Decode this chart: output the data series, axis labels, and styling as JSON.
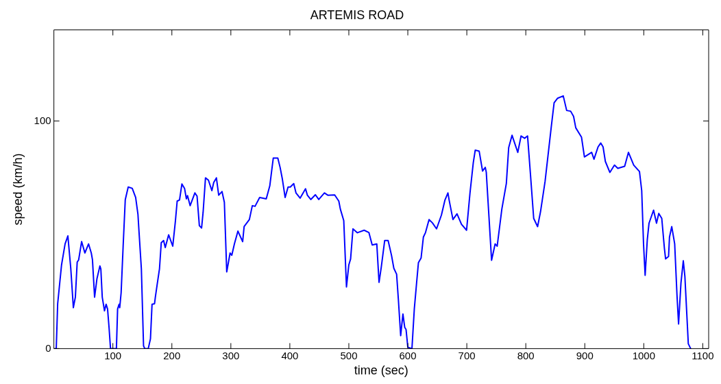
{
  "chart_data": {
    "type": "line",
    "title": "ARTEMIS ROAD",
    "xlabel": "time (sec)",
    "ylabel": "speed (km/h)",
    "xlim": [
      0,
      1110
    ],
    "xticks": [
      100,
      200,
      300,
      400,
      500,
      600,
      700,
      800,
      900,
      1000,
      1100
    ],
    "ylim": [
      0,
      140
    ],
    "yticks": [
      0,
      100
    ],
    "grid": false,
    "legend": false,
    "marker": "none",
    "line_style": "solid",
    "series": [
      {
        "color": "#0000ff",
        "x": [
          2,
          4,
          6.4,
          13,
          19,
          23.7,
          28.7,
          33,
          36.4,
          39.5,
          42,
          47,
          52.6,
          58.8,
          63.4,
          65.4,
          69,
          73,
          78,
          79.6,
          82,
          85.8,
          88.5,
          91,
          93.5,
          96,
          106,
          108,
          110.6,
          111.6,
          114,
          117.4,
          121,
          126,
          132.8,
          138.6,
          142.5,
          144.4,
          148.3,
          152,
          154,
          160,
          163.7,
          166.4,
          170.6,
          172,
          175,
          179,
          182,
          186,
          188.8,
          194.5,
          201.5,
          206,
          209,
          213,
          217,
          221.5,
          224.6,
          226.5,
          231,
          239,
          242.7,
          246.6,
          250.4,
          253,
          257,
          262,
          267.8,
          271,
          275.5,
          279.4,
          285,
          289,
          293,
          298.7,
          301.6,
          306,
          312,
          320,
          322.5,
          331.4,
          336.4,
          341,
          348.8,
          360,
          366,
          371.9,
          379.6,
          383.5,
          387.3,
          392,
          397,
          400.8,
          406.6,
          410.4,
          417.4,
          426.6,
          429.7,
          435.5,
          443.3,
          449,
          458.6,
          464.4,
          476,
          483,
          485.6,
          491.4,
          496,
          500,
          503,
          507,
          514.5,
          526,
          534,
          539.6,
          547.4,
          551.2,
          555,
          560.8,
          566.6,
          572.4,
          576.3,
          581,
          584,
          587.9,
          591.7,
          594.8,
          597,
          600,
          607,
          611,
          614.8,
          618,
          622.5,
          626.4,
          630,
          636,
          641.8,
          648.7,
          657,
          663,
          668,
          670,
          676.5,
          683.4,
          691,
          699.6,
          705.4,
          711,
          714.3,
          721,
          726.7,
          731.3,
          733,
          742,
          748,
          751.5,
          759.4,
          767,
          771,
          776.7,
          786.4,
          792,
          798,
          803,
          807.6,
          813.4,
          820,
          825,
          832.7,
          843,
          848,
          854,
          863.5,
          869.3,
          876,
          881,
          884.7,
          894.4,
          899.4,
          911.7,
          915.6,
          922.5,
          927,
          931,
          934.9,
          942.5,
          950.3,
          956,
          967.6,
          974,
          983,
          992.7,
          996.5,
          999.6,
          1002.3,
          1006,
          1008.9,
          1016.6,
          1021.6,
          1025.4,
          1030.5,
          1035,
          1037,
          1042,
          1043.6,
          1047.4,
          1052.4,
          1056.3,
          1059,
          1063,
          1067,
          1069.7,
          1075.5,
          1079.5
        ],
        "values": [
          0,
          0,
          19.7,
          36.8,
          46,
          49.5,
          35,
          18,
          22.6,
          38,
          39,
          47,
          42,
          46,
          42,
          39,
          22.6,
          30.7,
          36.3,
          35,
          22.6,
          16.6,
          19.5,
          17.4,
          9.3,
          0,
          0,
          17.4,
          19.5,
          18,
          24.6,
          45,
          65.4,
          71,
          70.4,
          66.4,
          59,
          51,
          35,
          1.2,
          0,
          0,
          4.3,
          19.5,
          19.7,
          22.6,
          28,
          35,
          46.5,
          47.5,
          44.4,
          50,
          45,
          56,
          64.8,
          65.3,
          72.3,
          70.4,
          65.8,
          67.2,
          62.8,
          68.4,
          67,
          54,
          53,
          60,
          75,
          74,
          69.4,
          73,
          75,
          67.4,
          69,
          64.3,
          33.7,
          42,
          41,
          46,
          51.6,
          47,
          53.6,
          56.7,
          62.8,
          62.5,
          66.4,
          65.8,
          71.5,
          83.7,
          83.7,
          79.6,
          74.5,
          66.4,
          71,
          71,
          72.5,
          68.4,
          66.1,
          70.2,
          67.4,
          65.5,
          67.6,
          65.5,
          68.4,
          67.4,
          67.5,
          64.8,
          61.3,
          56.2,
          27.1,
          36.8,
          39.4,
          52.6,
          50.9,
          52,
          51,
          45.5,
          46,
          29.1,
          35.8,
          47.5,
          47.5,
          40.9,
          35.3,
          32.7,
          21.5,
          5.7,
          15.2,
          9.3,
          8.4,
          0.6,
          0,
          17.4,
          28.6,
          37.8,
          39.8,
          49,
          51,
          56.7,
          55.2,
          52.6,
          58.7,
          65.3,
          68.4,
          65.3,
          56.7,
          59.2,
          54.6,
          52,
          68.4,
          81.7,
          87.2,
          86.7,
          78,
          79.6,
          77.5,
          38.8,
          46,
          45,
          61.3,
          72.5,
          88.3,
          93.7,
          86.2,
          93.4,
          92.4,
          93.4,
          77.6,
          57.2,
          53.6,
          60.2,
          73.5,
          97,
          108,
          110,
          111,
          104.6,
          104.3,
          102,
          97,
          92.9,
          84.2,
          86.2,
          83.2,
          88.6,
          90.3,
          88.6,
          82.2,
          77.4,
          80.6,
          79.2,
          80.1,
          86.2,
          80.6,
          77.8,
          69.4,
          46,
          32.2,
          48,
          55.1,
          60.8,
          55.1,
          59.4,
          57.2,
          44,
          39.4,
          40.5,
          49,
          53.6,
          46,
          23.5,
          10.8,
          28.7,
          38.6,
          31.7,
          2.1,
          0
        ]
      }
    ]
  }
}
